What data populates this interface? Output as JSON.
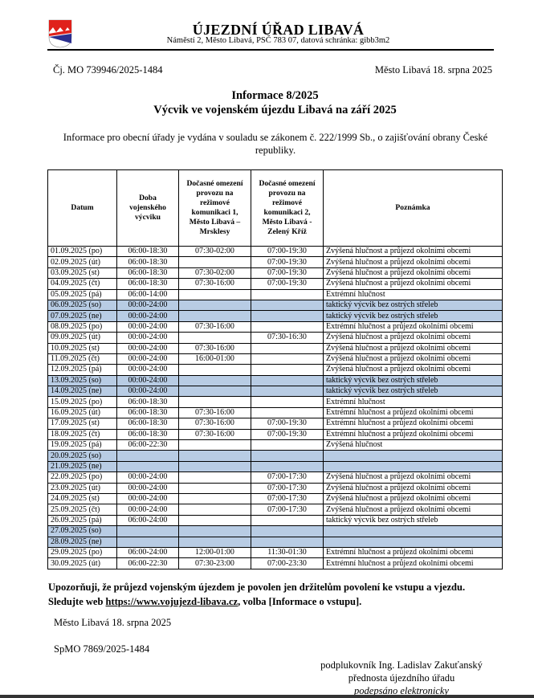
{
  "header": {
    "title": "ÚJEZDNÍ ÚŘAD LIBAVÁ",
    "address": "Náměstí 2, Město Libavá, PSČ 783 07, datová schránka: gibb3m2"
  },
  "reference": "Čj. MO 739946/2025-1484",
  "date_line": "Město Libavá 18. srpna 2025",
  "heading": {
    "line1": "Informace 8/2025",
    "line2": "Výcvik ve vojenském újezdu Libavá na září 2025"
  },
  "intro": "Informace pro obecní úřady je vydána v souladu se zákonem č. 222/1999 Sb., o zajišťování obrany České republiky.",
  "table": {
    "headers": [
      "Datum",
      "Doba vojenského výcviku",
      "Dočasné omezení provozu na režimové komunikaci 1, Město Libavá – Mrsklesy",
      "Dočasné omezení provozu na režimové komunikaci 2, Město Libavá - Zelený Kříž",
      "Poznámka"
    ],
    "rows": [
      [
        "01.09.2025 (po)",
        "06:00-18:30",
        "07:30-02:00",
        "07:00-19:30",
        "Zvýšená hlučnost a průjezd okolními obcemi",
        0
      ],
      [
        "02.09.2025 (út)",
        "06:00-18:30",
        "",
        "07:00-19:30",
        "Zvýšená hlučnost a průjezd okolními obcemi",
        0
      ],
      [
        "03.09.2025 (st)",
        "06:00-18:30",
        "07:30-02:00",
        "07:00-19:30",
        "Zvýšená hlučnost a průjezd okolními obcemi",
        0
      ],
      [
        "04.09.2025 (čt)",
        "06:00-18:30",
        "07:30-16:00",
        "07:00-19:30",
        "Zvýšená hlučnost a průjezd okolními obcemi",
        0
      ],
      [
        "05.09.2025 (pá)",
        "06:00-14:00",
        "",
        "",
        "Extrémní hlučnost",
        0
      ],
      [
        "06.09.2025 (so)",
        "00:00-24:00",
        "",
        "",
        "taktický výcvik bez ostrých střeleb",
        1
      ],
      [
        "07.09.2025 (ne)",
        "00:00-24:00",
        "",
        "",
        "taktický výcvik bez ostrých střeleb",
        1
      ],
      [
        "08.09.2025 (po)",
        "00:00-24:00",
        "07:30-16:00",
        "",
        "Extrémní hlučnost a průjezd okolními obcemi",
        0
      ],
      [
        "09.09.2025 (út)",
        "00:00-24:00",
        "",
        "07:30-16:30",
        "Zvýšená hlučnost a průjezd okolními obcemi",
        0
      ],
      [
        "10.09.2025 (st)",
        "00:00-24:00",
        "07:30-16:00",
        "",
        "Zvýšená hlučnost a průjezd okolními obcemi",
        0
      ],
      [
        "11.09.2025 (čt)",
        "00:00-24:00",
        "16:00-01:00",
        "",
        "Zvýšená hlučnost a průjezd okolními obcemi",
        0
      ],
      [
        "12.09.2025 (pá)",
        "00:00-24:00",
        "",
        "",
        "Zvýšená hlučnost a průjezd okolními obcemi",
        0
      ],
      [
        "13.09.2025 (so)",
        "00:00-24:00",
        "",
        "",
        "taktický výcvik bez ostrých střeleb",
        1
      ],
      [
        "14.09.2025 (ne)",
        "00:00-24:00",
        "",
        "",
        "taktický výcvik bez ostrých střeleb",
        1
      ],
      [
        "15.09.2025 (po)",
        "06:00-18:30",
        "",
        "",
        "Extrémní hlučnost",
        0
      ],
      [
        "16.09.2025 (út)",
        "06:00-18:30",
        "07:30-16:00",
        "",
        "Extrémní hlučnost a průjezd okolními obcemi",
        0
      ],
      [
        "17.09.2025 (st)",
        "06:00-18:30",
        "07:30-16:00",
        "07:00-19:30",
        "Extrémní hlučnost a průjezd okolními obcemi",
        0
      ],
      [
        "18.09.2025 (čt)",
        "06:00-18:30",
        "07:30-16:00",
        "07:00-19:30",
        "Extrémní hlučnost a průjezd okolními obcemi",
        0
      ],
      [
        "19.09.2025 (pá)",
        "06:00-22:30",
        "",
        "",
        "Zvýšená hlučnost",
        0
      ],
      [
        "20.09.2025 (so)",
        "",
        "",
        "",
        "",
        1
      ],
      [
        "21.09.2025 (ne)",
        "",
        "",
        "",
        "",
        1
      ],
      [
        "22.09.2025 (po)",
        "00:00-24:00",
        "",
        "07:00-17:30",
        "Zvýšená hlučnost a průjezd okolními obcemi",
        0
      ],
      [
        "23.09.2025 (út)",
        "00:00-24:00",
        "",
        "07:00-17:30",
        "Zvýšená hlučnost a průjezd okolními obcemi",
        0
      ],
      [
        "24.09.2025 (st)",
        "00:00-24:00",
        "",
        "07:00-17:30",
        "Zvýšená hlučnost a průjezd okolními obcemi",
        0
      ],
      [
        "25.09.2025 (čt)",
        "00:00-24:00",
        "",
        "07:00-17:30",
        "Zvýšená hlučnost a průjezd okolními obcemi",
        0
      ],
      [
        "26.09.2025 (pá)",
        "06:00-24:00",
        "",
        "",
        "taktický výcvik bez ostrých střeleb",
        0
      ],
      [
        "27.09.2025 (so)",
        "",
        "",
        "",
        "",
        1
      ],
      [
        "28.09.2025 (ne)",
        "",
        "",
        "",
        "",
        1
      ],
      [
        "29.09.2025 (po)",
        "06:00-24:00",
        "12:00-01:00",
        "11:30-01:30",
        "Extrémní hlučnost a průjezd okolními obcemi",
        0
      ],
      [
        "30.09.2025 (út)",
        "06:00-22:30",
        "07:30-23:00",
        "07:00-23:30",
        "Extrémní hlučnost a průjezd okolními obcemi",
        0
      ]
    ]
  },
  "warning": {
    "before": "Upozorňuji, že průjezd vojenským újezdem je povolen jen držitelům povolení ke vstupu a vjezdu. Sledujte web ",
    "link": "https://www.vojujezd-libava.cz",
    "after": ", volba [Informace o vstupu]."
  },
  "footer": {
    "place_date": "Město Libavá 18. srpna 2025",
    "sp_ref": "SpMO 7869/2025-1484",
    "signatory": "podplukovník Ing. Ladislav Zakuťanský",
    "role": "přednosta újezdního úřadu",
    "signed": "podepsáno elektronicky"
  },
  "colors": {
    "weekend_shade": "#b8cce4",
    "logo_red": "#e0211b",
    "logo_blue": "#2b2f8f"
  }
}
